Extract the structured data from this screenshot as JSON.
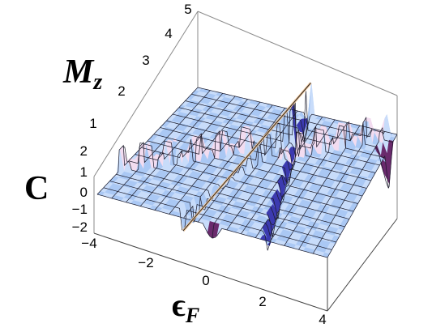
{
  "chart_data": {
    "type": "surface3d",
    "x_axis": {
      "label": "ϵ",
      "label_sub": "F",
      "ticks": [
        "−4",
        "−2",
        "0",
        "2",
        "4"
      ],
      "range": [
        -4,
        4
      ]
    },
    "y_axis": {
      "label": "M",
      "label_sub": "z",
      "ticks": [
        "1",
        "2",
        "3",
        "4",
        "5"
      ],
      "range": [
        0,
        5
      ]
    },
    "z_axis": {
      "label": "C",
      "ticks": [
        "−2",
        "−1",
        "0",
        "1",
        "2"
      ],
      "range": [
        -2,
        2
      ]
    },
    "surface": {
      "description_values": {
        "C_plateau": 0,
        "C_step_ridge": 1,
        "C_dip": -1
      },
      "features": [
        {
          "name": "diagonal-step-line",
          "from": [
            -1.2,
            0.3
          ],
          "to": [
            0.8,
            4.6
          ],
          "C": [
            -1,
            2
          ]
        },
        {
          "name": "step-ridge-left",
          "from": [
            -4,
            1.2
          ],
          "to": [
            -0.6,
            3.2
          ],
          "C": 1
        },
        {
          "name": "step-ridge-right",
          "from": [
            0.6,
            3.2
          ],
          "to": [
            3.6,
            4.8
          ],
          "C": 1
        },
        {
          "name": "dark-ridge",
          "from": [
            1.8,
            0.2
          ],
          "to": [
            0.4,
            5.0
          ],
          "C": -1
        },
        {
          "name": "dip-front",
          "at": [
            0.0,
            -0.2
          ],
          "C": -2
        },
        {
          "name": "dip-right",
          "at": [
            4.0,
            4.4
          ],
          "C": -2
        }
      ]
    },
    "grid": true,
    "box": true
  },
  "colors": {
    "surface_fill": "#aac8f4",
    "surface_light": "#c8dcfa",
    "ridge_pink": "#f2dcf0",
    "ridge_dark": "#3c3ab0",
    "dip_dark": "#6a2a6c",
    "mesh": "#1a1a2a",
    "box_line": "#8a8a8a"
  }
}
